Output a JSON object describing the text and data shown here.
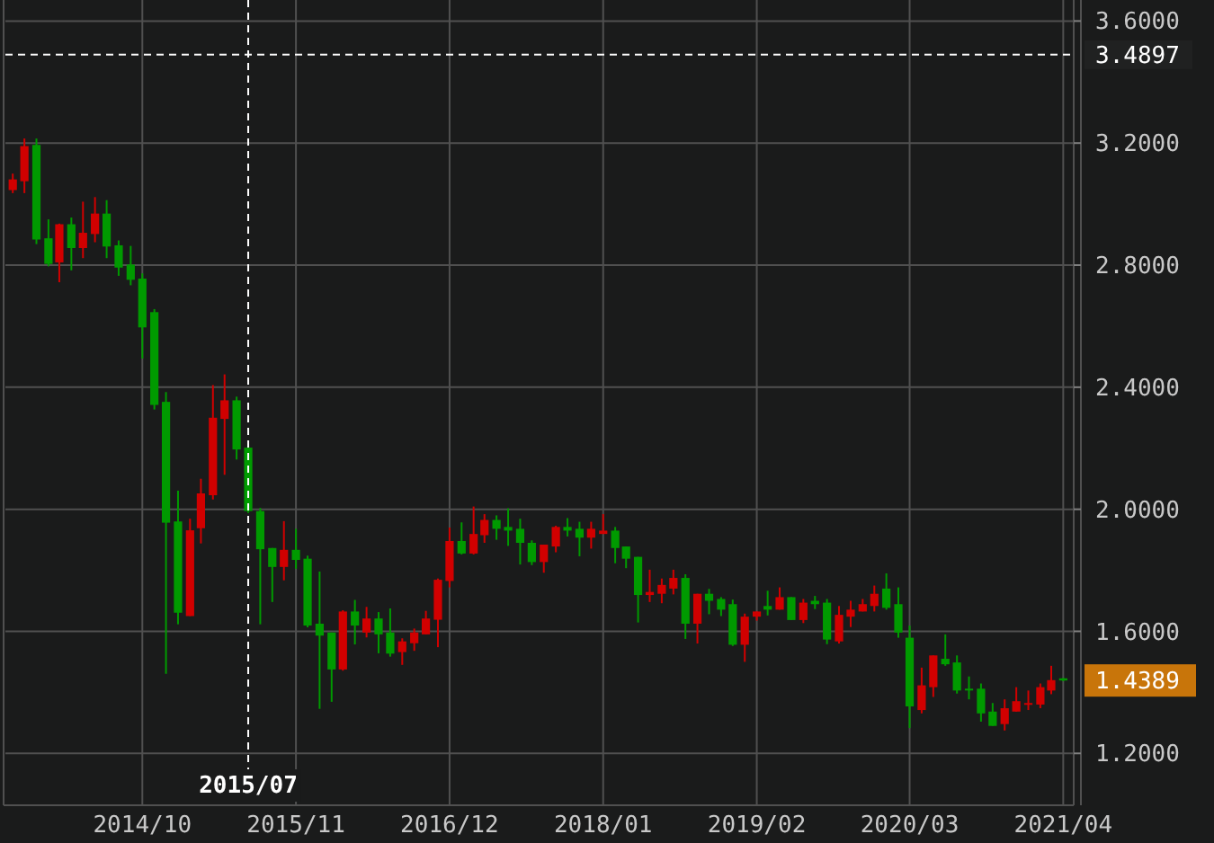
{
  "chart_data": {
    "type": "candlestick",
    "x": [
      "2013-11",
      "2013-12",
      "2014-01",
      "2014-02",
      "2014-03",
      "2014-04",
      "2014-05",
      "2014-06",
      "2014-07",
      "2014-08",
      "2014-09",
      "2014-10",
      "2014-11",
      "2014-12",
      "2015-01",
      "2015-02",
      "2015-03",
      "2015-04",
      "2015-05",
      "2015-06",
      "2015-07",
      "2015-08",
      "2015-09",
      "2015-10",
      "2015-11",
      "2015-12",
      "2016-01",
      "2016-02",
      "2016-03",
      "2016-04",
      "2016-05",
      "2016-06",
      "2016-07",
      "2016-08",
      "2016-09",
      "2016-10",
      "2016-11",
      "2016-12",
      "2017-01",
      "2017-02",
      "2017-03",
      "2017-04",
      "2017-05",
      "2017-06",
      "2017-07",
      "2017-08",
      "2017-09",
      "2017-10",
      "2017-11",
      "2017-12",
      "2018-01",
      "2018-02",
      "2018-03",
      "2018-04",
      "2018-05",
      "2018-06",
      "2018-07",
      "2018-08",
      "2018-09",
      "2018-10",
      "2018-11",
      "2018-12",
      "2019-01",
      "2019-02",
      "2019-03",
      "2019-04",
      "2019-05",
      "2019-06",
      "2019-07",
      "2019-08",
      "2019-09",
      "2019-10",
      "2019-11",
      "2019-12",
      "2020-01",
      "2020-02",
      "2020-03",
      "2020-04",
      "2020-05",
      "2020-06",
      "2020-07",
      "2020-08",
      "2020-09",
      "2020-10",
      "2020-11",
      "2020-12",
      "2021-01",
      "2021-02",
      "2021-03",
      "2021-04"
    ],
    "ohlc": [
      [
        3.046,
        3.1,
        3.036,
        3.081
      ],
      [
        3.075,
        3.215,
        3.036,
        3.19
      ],
      [
        3.194,
        3.215,
        2.869,
        2.884
      ],
      [
        2.888,
        2.95,
        2.796,
        2.804
      ],
      [
        2.809,
        2.936,
        2.744,
        2.934
      ],
      [
        2.934,
        2.956,
        2.783,
        2.856
      ],
      [
        2.856,
        3.008,
        2.823,
        2.906
      ],
      [
        2.902,
        3.023,
        2.875,
        2.969
      ],
      [
        2.969,
        3.013,
        2.823,
        2.861
      ],
      [
        2.865,
        2.881,
        2.765,
        2.792
      ],
      [
        2.802,
        2.863,
        2.734,
        2.752
      ],
      [
        2.756,
        2.773,
        2.494,
        2.596
      ],
      [
        2.646,
        2.656,
        2.327,
        2.342
      ],
      [
        2.352,
        2.384,
        1.461,
        1.956
      ],
      [
        1.96,
        2.061,
        1.623,
        1.661
      ],
      [
        1.65,
        1.969,
        1.65,
        1.931
      ],
      [
        1.938,
        2.1,
        1.888,
        2.052
      ],
      [
        2.046,
        2.407,
        2.032,
        2.3
      ],
      [
        2.296,
        2.442,
        2.113,
        2.357
      ],
      [
        2.357,
        2.369,
        2.163,
        2.196
      ],
      [
        2.202,
        2.209,
        1.988,
        1.994
      ],
      [
        1.994,
        2.004,
        1.623,
        1.869
      ],
      [
        1.873,
        1.873,
        1.696,
        1.811
      ],
      [
        1.811,
        1.961,
        1.767,
        1.867
      ],
      [
        1.867,
        1.936,
        1.805,
        1.834
      ],
      [
        1.838,
        1.848,
        1.613,
        1.619
      ],
      [
        1.625,
        1.796,
        1.346,
        1.586
      ],
      [
        1.596,
        1.596,
        1.369,
        1.475
      ],
      [
        1.475,
        1.669,
        1.471,
        1.665
      ],
      [
        1.665,
        1.703,
        1.557,
        1.619
      ],
      [
        1.596,
        1.68,
        1.58,
        1.642
      ],
      [
        1.642,
        1.663,
        1.528,
        1.59
      ],
      [
        1.596,
        1.675,
        1.517,
        1.527
      ],
      [
        1.532,
        1.577,
        1.49,
        1.567
      ],
      [
        1.561,
        1.609,
        1.536,
        1.596
      ],
      [
        1.59,
        1.667,
        1.59,
        1.642
      ],
      [
        1.638,
        1.773,
        1.548,
        1.769
      ],
      [
        1.765,
        1.94,
        1.744,
        1.896
      ],
      [
        1.896,
        1.957,
        1.852,
        1.855
      ],
      [
        1.855,
        2.009,
        1.852,
        1.919
      ],
      [
        1.915,
        1.984,
        1.89,
        1.965
      ],
      [
        1.965,
        1.98,
        1.9,
        1.936
      ],
      [
        1.942,
        2.003,
        1.88,
        1.93
      ],
      [
        1.936,
        1.969,
        1.819,
        1.89
      ],
      [
        1.89,
        1.898,
        1.817,
        1.827
      ],
      [
        1.827,
        1.884,
        1.792,
        1.884
      ],
      [
        1.878,
        1.946,
        1.859,
        1.942
      ],
      [
        1.942,
        1.971,
        1.911,
        1.93
      ],
      [
        1.936,
        1.959,
        1.846,
        1.907
      ],
      [
        1.907,
        1.959,
        1.871,
        1.936
      ],
      [
        1.919,
        1.984,
        1.919,
        1.93
      ],
      [
        1.93,
        1.942,
        1.823,
        1.873
      ],
      [
        1.878,
        1.878,
        1.807,
        1.838
      ],
      [
        1.844,
        1.844,
        1.629,
        1.719
      ],
      [
        1.719,
        1.802,
        1.696,
        1.729
      ],
      [
        1.723,
        1.773,
        1.692,
        1.752
      ],
      [
        1.74,
        1.802,
        1.721,
        1.775
      ],
      [
        1.775,
        1.787,
        1.575,
        1.625
      ],
      [
        1.625,
        1.723,
        1.56,
        1.723
      ],
      [
        1.723,
        1.739,
        1.656,
        1.7
      ],
      [
        1.706,
        1.712,
        1.65,
        1.671
      ],
      [
        1.689,
        1.704,
        1.552,
        1.556
      ],
      [
        1.556,
        1.658,
        1.5,
        1.648
      ],
      [
        1.648,
        1.665,
        1.635,
        1.665
      ],
      [
        1.683,
        1.733,
        1.652,
        1.671
      ],
      [
        1.671,
        1.744,
        1.671,
        1.712
      ],
      [
        1.712,
        1.712,
        1.637,
        1.637
      ],
      [
        1.637,
        1.706,
        1.627,
        1.694
      ],
      [
        1.7,
        1.716,
        1.673,
        1.689
      ],
      [
        1.694,
        1.706,
        1.558,
        1.573
      ],
      [
        1.567,
        1.683,
        1.56,
        1.654
      ],
      [
        1.648,
        1.7,
        1.614,
        1.671
      ],
      [
        1.665,
        1.706,
        1.665,
        1.689
      ],
      [
        1.683,
        1.75,
        1.665,
        1.723
      ],
      [
        1.74,
        1.79,
        1.671,
        1.677
      ],
      [
        1.689,
        1.744,
        1.579,
        1.596
      ],
      [
        1.579,
        1.619,
        1.283,
        1.354
      ],
      [
        1.342,
        1.481,
        1.331,
        1.423
      ],
      [
        1.417,
        1.521,
        1.385,
        1.521
      ],
      [
        1.51,
        1.59,
        1.487,
        1.492
      ],
      [
        1.498,
        1.521,
        1.396,
        1.406
      ],
      [
        1.412,
        1.452,
        1.377,
        1.408
      ],
      [
        1.412,
        1.429,
        1.304,
        1.331
      ],
      [
        1.337,
        1.365,
        1.29,
        1.29
      ],
      [
        1.296,
        1.377,
        1.275,
        1.348
      ],
      [
        1.337,
        1.417,
        1.337,
        1.371
      ],
      [
        1.362,
        1.406,
        1.342,
        1.365
      ],
      [
        1.36,
        1.429,
        1.348,
        1.417
      ],
      [
        1.406,
        1.487,
        1.394,
        1.44
      ],
      [
        1.446,
        1.447,
        1.437,
        1.4389
      ]
    ],
    "colors": [
      "#d10000",
      "#d10000",
      "#009a00",
      "#009a00",
      "#d10000",
      "#009a00",
      "#d10000",
      "#d10000",
      "#009a00",
      "#009a00",
      "#009a00",
      "#009a00",
      "#009a00",
      "#009a00",
      "#009a00",
      "#d10000",
      "#d10000",
      "#d10000",
      "#d10000",
      "#009a00",
      "#009a00",
      "#009a00",
      "#009a00",
      "#d10000",
      "#009a00",
      "#009a00",
      "#009a00",
      "#009a00",
      "#d10000",
      "#009a00",
      "#d10000",
      "#009a00",
      "#009a00",
      "#d10000",
      "#d10000",
      "#d10000",
      "#d10000",
      "#d10000",
      "#009a00",
      "#d10000",
      "#d10000",
      "#009a00",
      "#009a00",
      "#009a00",
      "#009a00",
      "#d10000",
      "#d10000",
      "#009a00",
      "#009a00",
      "#d10000",
      "#d10000",
      "#009a00",
      "#009a00",
      "#009a00",
      "#d10000",
      "#d10000",
      "#d10000",
      "#009a00",
      "#d10000",
      "#009a00",
      "#009a00",
      "#009a00",
      "#d10000",
      "#d10000",
      "#009a00",
      "#d10000",
      "#009a00",
      "#d10000",
      "#009a00",
      "#009a00",
      "#d10000",
      "#d10000",
      "#d10000",
      "#d10000",
      "#009a00",
      "#009a00",
      "#009a00",
      "#d10000",
      "#d10000",
      "#009a00",
      "#009a00",
      "#009a00",
      "#009a00",
      "#009a00",
      "#d10000",
      "#d10000",
      "#d10000",
      "#d10000",
      "#d10000",
      "#009a00"
    ],
    "xlim": [
      "2013-10-13",
      "2021-04-28"
    ],
    "xticks": [
      {
        "value": "2014-10",
        "label": "2014/10"
      },
      {
        "value": "2015-11",
        "label": "2015/11"
      },
      {
        "value": "2016-12",
        "label": "2016/12"
      },
      {
        "value": "2018-01",
        "label": "2018/01"
      },
      {
        "value": "2019-02",
        "label": "2019/02"
      },
      {
        "value": "2020-03",
        "label": "2020/03"
      },
      {
        "value": "2021-04",
        "label": "2021/04"
      }
    ],
    "ylim": [
      1.03,
      3.61
    ],
    "yticks": [
      {
        "value": 1.2,
        "label": "1.2000"
      },
      {
        "value": 1.6,
        "label": "1.6000"
      },
      {
        "value": 2.0,
        "label": "2.0000"
      },
      {
        "value": 2.4,
        "label": "2.4000"
      },
      {
        "value": 2.8,
        "label": "2.8000"
      },
      {
        "value": 3.2,
        "label": "3.2000"
      },
      {
        "value": 3.6,
        "label": "3.6000"
      }
    ],
    "grid": true,
    "ref_lines": [
      {
        "axis": "y",
        "value": 3.4897,
        "label": "3.4897",
        "color": "#ffffff",
        "line_style": "dashed"
      },
      {
        "axis": "x",
        "value": "2015-07",
        "label": "2015/07",
        "color": "#ffffff",
        "line_style": "dashed"
      }
    ],
    "annotations": [
      "1.4389"
    ]
  }
}
